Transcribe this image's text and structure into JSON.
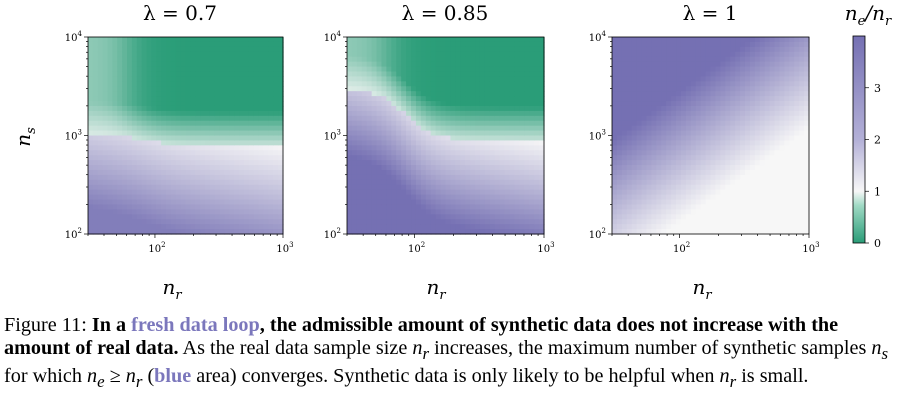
{
  "chart_data": {
    "type": "heatmap",
    "panels": [
      {
        "title": "λ = 0.7",
        "boundary_ns_at_low_nr": 1000,
        "boundary_ns_at_high_nr": 800,
        "shape": "step"
      },
      {
        "title": "λ = 0.85",
        "boundary_ns_at_low_nr": 3000,
        "boundary_ns_at_high_nr": 900,
        "shape": "step"
      },
      {
        "title": "λ = 1",
        "shape": "diagonal"
      }
    ],
    "x": {
      "label": "n_r",
      "scale": "log",
      "range": [
        30,
        1000
      ],
      "ticks": [
        {
          "v": 100,
          "base": "10",
          "exp": "2"
        },
        {
          "v": 1000,
          "base": "10",
          "exp": "3"
        }
      ]
    },
    "y": {
      "label": "n_s",
      "scale": "log",
      "range": [
        100,
        10000
      ],
      "ticks": [
        {
          "v": 100,
          "base": "10",
          "exp": "2"
        },
        {
          "v": 1000,
          "base": "10",
          "exp": "3"
        },
        {
          "v": 10000,
          "base": "10",
          "exp": "4"
        }
      ]
    },
    "colorbar": {
      "label": "n_e/n_r",
      "range": [
        0,
        4
      ],
      "ticks": [
        "0",
        "1",
        "2",
        "3"
      ],
      "colors": {
        "low": "#2a9d78",
        "mid": "#f7f7f7",
        "high": "#7570b3"
      }
    }
  },
  "caption": {
    "prefix": "Figure 11: ",
    "bold1": "In a ",
    "accent1": "fresh data loop",
    "bold2": ", the admissible amount of synthetic data does not increase with the amount of real data.",
    "text1": " As the real data sample size ",
    "m1": "n",
    "m1sub": "r",
    "text2": " increases, the maximum number of synthetic samples ",
    "m2": "n",
    "m2sub": "s",
    "text3": " for which ",
    "m3a": "n",
    "m3asub": "e",
    "m3op": " ≥ ",
    "m3b": "n",
    "m3bsub": "r",
    "text4": " (",
    "accent2": "blue",
    "text5": " area) converges. Synthetic data is only likely to be helpful when ",
    "m4": "n",
    "m4sub": "r",
    "text6": " is small."
  }
}
